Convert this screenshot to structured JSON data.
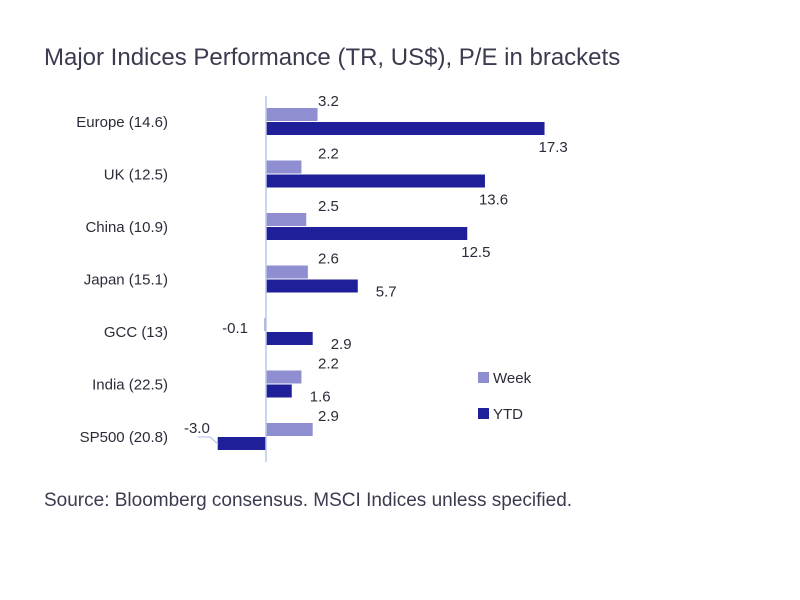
{
  "title": "Major Indices Performance (TR, US$), P/E in brackets",
  "source": "Source: Bloomberg consensus. MSCI Indices unless specified.",
  "colors": {
    "week": "#8e8ed0",
    "ytd": "#1f1f9a",
    "axis": "#b9c9e8"
  },
  "chart_data": {
    "type": "bar",
    "orientation": "horizontal",
    "categories": [
      "Europe (14.6)",
      "UK (12.5)",
      "China (10.9)",
      "Japan (15.1)",
      "GCC (13)",
      "India (22.5)",
      "SP500 (20.8)"
    ],
    "series": [
      {
        "name": "Week",
        "values": [
          3.2,
          2.2,
          2.5,
          2.6,
          -0.1,
          2.2,
          2.9
        ],
        "labels": [
          "3.2",
          "2.2",
          "2.5",
          "2.6",
          "-0.1",
          "2.2",
          "2.9"
        ]
      },
      {
        "name": "YTD",
        "values": [
          17.3,
          13.6,
          12.5,
          5.7,
          2.9,
          1.6,
          -3.0
        ],
        "labels": [
          "17.3",
          "13.6",
          "12.5",
          "5.7",
          "2.9",
          "1.6",
          "-3.0"
        ]
      }
    ],
    "legend_position": "right",
    "grid": false
  }
}
